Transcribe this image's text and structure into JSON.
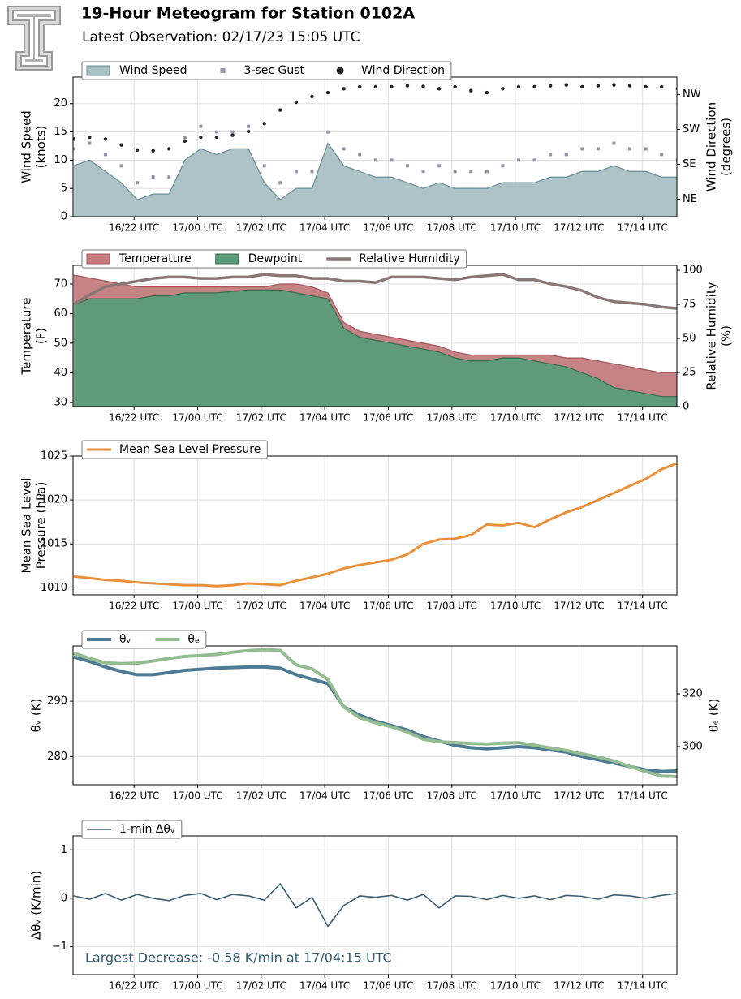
{
  "header": {
    "title": "19-Hour Meteogram for Station 0102A",
    "subtitle": "Latest Observation: 02/17/23 15:05 UTC"
  },
  "chart_data": [
    {
      "type": "combo",
      "ylabel": [
        "Wind Speed",
        "(knots)"
      ],
      "y2label": [
        "Wind Direction",
        "(degrees)"
      ],
      "x": [
        20.1,
        20.6,
        21.1,
        21.6,
        22.1,
        22.6,
        23.1,
        23.6,
        24.1,
        24.6,
        25.1,
        25.6,
        26.1,
        26.6,
        27.1,
        27.6,
        28.1,
        28.6,
        29.1,
        29.6,
        30.1,
        30.6,
        31.1,
        31.6,
        32.1,
        32.6,
        33.1,
        33.6,
        34.1,
        34.6,
        35.1,
        35.6,
        36.1,
        36.6,
        37.1,
        37.6,
        38.1,
        38.6,
        39.1
      ],
      "xlim": [
        20.08,
        39.08
      ],
      "xticks": [
        {
          "value": 22,
          "label": "16/22 UTC"
        },
        {
          "value": 24,
          "label": "17/00 UTC"
        },
        {
          "value": 26,
          "label": "17/02 UTC"
        },
        {
          "value": 28,
          "label": "17/04 UTC"
        },
        {
          "value": 30,
          "label": "17/06 UTC"
        },
        {
          "value": 32,
          "label": "17/08 UTC"
        },
        {
          "value": 34,
          "label": "17/10 UTC"
        },
        {
          "value": 36,
          "label": "17/12 UTC"
        },
        {
          "value": 38,
          "label": "17/14 UTC"
        }
      ],
      "ylim": [
        0,
        24.7
      ],
      "yticks": [
        0,
        5,
        10,
        15,
        20
      ],
      "y2lim": [
        0,
        360
      ],
      "y2ticks": [
        {
          "value": 45,
          "label": "NE"
        },
        {
          "value": 135,
          "label": "SE"
        },
        {
          "value": 225,
          "label": "SW"
        },
        {
          "value": 315,
          "label": "NW"
        }
      ],
      "grid": true,
      "series": [
        {
          "name": "Wind Speed",
          "type": "area",
          "color": "#a9c0c5",
          "line_color": "#6e9099",
          "values": [
            9,
            10,
            8,
            6,
            3,
            4,
            4,
            10,
            12,
            11,
            12,
            12,
            6,
            3,
            5,
            5,
            13,
            9,
            8,
            7,
            7,
            6,
            5,
            6,
            5,
            5,
            5,
            6,
            6,
            6,
            7,
            7,
            8,
            8,
            9,
            8,
            8,
            7,
            7
          ]
        },
        {
          "name": "3-sec Gust",
          "type": "scatter",
          "marker": "square",
          "color": "#9a8fa8",
          "values": [
            12,
            13,
            11,
            9,
            6,
            7,
            7,
            14,
            16,
            15,
            15,
            16,
            9,
            6,
            8,
            8,
            15,
            12,
            11,
            10,
            10,
            9,
            8,
            9,
            8,
            8,
            8,
            9,
            10,
            10,
            11,
            11,
            12,
            12,
            13,
            12,
            12,
            11,
            10
          ]
        },
        {
          "name": "Wind Direction",
          "type": "scatter",
          "marker": "circle",
          "color": "#222222",
          "axis": "y2",
          "values": [
            200,
            205,
            200,
            185,
            172,
            170,
            175,
            195,
            205,
            205,
            210,
            220,
            240,
            275,
            295,
            310,
            320,
            330,
            335,
            335,
            335,
            338,
            336,
            330,
            335,
            325,
            320,
            330,
            335,
            335,
            338,
            340,
            335,
            338,
            340,
            338,
            335,
            335,
            330
          ]
        }
      ]
    },
    {
      "type": "combo",
      "ylabel": [
        "Temperature",
        "(F)"
      ],
      "y2label": [
        "Relative Humidity",
        "(%)"
      ],
      "x": [
        20.1,
        20.6,
        21.1,
        21.6,
        22.1,
        22.6,
        23.1,
        23.6,
        24.1,
        24.6,
        25.1,
        25.6,
        26.1,
        26.6,
        27.1,
        27.6,
        28.1,
        28.6,
        29.1,
        29.6,
        30.1,
        30.6,
        31.1,
        31.6,
        32.1,
        32.6,
        33.1,
        33.6,
        34.1,
        34.6,
        35.1,
        35.6,
        36.1,
        36.6,
        37.1,
        37.6,
        38.1,
        38.6,
        39.1
      ],
      "xlim": [
        20.08,
        39.08
      ],
      "xticks": [
        {
          "value": 22,
          "label": "16/22 UTC"
        },
        {
          "value": 24,
          "label": "17/00 UTC"
        },
        {
          "value": 26,
          "label": "17/02 UTC"
        },
        {
          "value": 28,
          "label": "17/04 UTC"
        },
        {
          "value": 30,
          "label": "17/06 UTC"
        },
        {
          "value": 32,
          "label": "17/08 UTC"
        },
        {
          "value": 34,
          "label": "17/10 UTC"
        },
        {
          "value": 36,
          "label": "17/12 UTC"
        },
        {
          "value": 38,
          "label": "17/14 UTC"
        }
      ],
      "ylim": [
        28.6,
        76.3
      ],
      "yticks": [
        30,
        40,
        50,
        60,
        70
      ],
      "y2lim": [
        0,
        103.6
      ],
      "y2ticks": [
        0,
        25,
        50,
        75,
        100
      ],
      "grid": true,
      "series": [
        {
          "name": "Temperature",
          "type": "area",
          "color": "#c47b7e",
          "line_color": "#a35a5d",
          "values": [
            73,
            72,
            71,
            70,
            69,
            69,
            69,
            69,
            69,
            69,
            69,
            69,
            69,
            70,
            70,
            69,
            67,
            57,
            54,
            53,
            52,
            51,
            50,
            49,
            47,
            46,
            46,
            46,
            46,
            46,
            46,
            45,
            45,
            44,
            43,
            42,
            41,
            40,
            40
          ]
        },
        {
          "name": "Dewpoint",
          "type": "area",
          "color": "#5a9c78",
          "line_color": "#3f6e52",
          "values": [
            63,
            65,
            65,
            65,
            65,
            66,
            66,
            67,
            67,
            67,
            67.5,
            68,
            68,
            68,
            67,
            66,
            65,
            55,
            52,
            51,
            50,
            49,
            48,
            47,
            45,
            44,
            44,
            45,
            45,
            44,
            43,
            42,
            40,
            38,
            35,
            34,
            33,
            32,
            32
          ]
        },
        {
          "name": "Relative Humidity",
          "type": "line",
          "width": 3.5,
          "color": "#8a7676",
          "axis": "y2",
          "values": [
            75,
            82,
            88,
            90,
            92,
            94,
            95,
            95,
            94,
            94,
            95,
            95,
            97,
            96,
            96,
            94,
            94,
            92,
            92,
            91,
            95,
            95,
            95,
            94,
            93,
            95,
            96,
            97,
            93,
            93,
            90,
            88,
            85,
            80,
            77,
            76,
            75,
            73,
            72
          ]
        }
      ]
    },
    {
      "type": "combo",
      "ylabel": [
        "Mean Sea Level",
        "Pressure (hPa)"
      ],
      "x": [
        20.1,
        20.6,
        21.1,
        21.6,
        22.1,
        22.6,
        23.1,
        23.6,
        24.1,
        24.6,
        25.1,
        25.6,
        26.1,
        26.6,
        27.1,
        27.6,
        28.1,
        28.6,
        29.1,
        29.6,
        30.1,
        30.6,
        31.1,
        31.6,
        32.1,
        32.6,
        33.1,
        33.6,
        34.1,
        34.6,
        35.1,
        35.6,
        36.1,
        36.6,
        37.1,
        37.6,
        38.1,
        38.6,
        39.1
      ],
      "xlim": [
        20.08,
        39.08
      ],
      "xticks": [
        {
          "value": 22,
          "label": "16/22 UTC"
        },
        {
          "value": 24,
          "label": "17/00 UTC"
        },
        {
          "value": 26,
          "label": "17/02 UTC"
        },
        {
          "value": 28,
          "label": "17/04 UTC"
        },
        {
          "value": 30,
          "label": "17/06 UTC"
        },
        {
          "value": 32,
          "label": "17/08 UTC"
        },
        {
          "value": 34,
          "label": "17/10 UTC"
        },
        {
          "value": 36,
          "label": "17/12 UTC"
        },
        {
          "value": 38,
          "label": "17/14 UTC"
        }
      ],
      "ylim": [
        1009.2,
        1025
      ],
      "yticks": [
        1010,
        1015,
        1020,
        1025
      ],
      "grid": true,
      "series": [
        {
          "name": "Mean Sea Level Pressure",
          "type": "line",
          "width": 3,
          "color": "#e8903a",
          "values": [
            1011.3,
            1011.1,
            1010.9,
            1010.8,
            1010.6,
            1010.5,
            1010.4,
            1010.3,
            1010.3,
            1010.2,
            1010.3,
            1010.5,
            1010.4,
            1010.3,
            1010.8,
            1011.2,
            1011.6,
            1012.2,
            1012.6,
            1012.9,
            1013.2,
            1013.8,
            1015,
            1015.5,
            1015.6,
            1016,
            1017.2,
            1017.1,
            1017.4,
            1016.9,
            1017.8,
            1018.6,
            1019.2,
            1020,
            1020.8,
            1021.6,
            1022.4,
            1023.5,
            1024.2
          ]
        }
      ]
    },
    {
      "type": "combo",
      "ylabel": [
        "θᵥ (K)"
      ],
      "y2label": [
        "θₑ (K)"
      ],
      "x": [
        20.1,
        20.6,
        21.1,
        21.6,
        22.1,
        22.6,
        23.1,
        23.6,
        24.1,
        24.6,
        25.1,
        25.6,
        26.1,
        26.6,
        27.1,
        27.6,
        28.1,
        28.6,
        29.1,
        29.6,
        30.1,
        30.6,
        31.1,
        31.6,
        32.1,
        32.6,
        33.1,
        33.6,
        34.1,
        34.6,
        35.1,
        35.6,
        36.1,
        36.6,
        37.1,
        37.6,
        38.1,
        38.6,
        39.1
      ],
      "xlim": [
        20.08,
        39.08
      ],
      "xticks": [
        {
          "value": 22,
          "label": "16/22 UTC"
        },
        {
          "value": 24,
          "label": "17/00 UTC"
        },
        {
          "value": 26,
          "label": "17/02 UTC"
        },
        {
          "value": 28,
          "label": "17/04 UTC"
        },
        {
          "value": 30,
          "label": "17/06 UTC"
        },
        {
          "value": 32,
          "label": "17/08 UTC"
        },
        {
          "value": 34,
          "label": "17/10 UTC"
        },
        {
          "value": 36,
          "label": "17/12 UTC"
        },
        {
          "value": 38,
          "label": "17/14 UTC"
        }
      ],
      "ylim": [
        274.9,
        300
      ],
      "yticks": [
        280,
        290
      ],
      "y2lim": [
        285.5,
        338.2
      ],
      "y2ticks": [
        300,
        320
      ],
      "grid": true,
      "series": [
        {
          "name": "θᵥ",
          "type": "line",
          "width": 4,
          "color": "#4d7a95",
          "values": [
            298,
            297.2,
            296.2,
            295.4,
            294.8,
            294.8,
            295.2,
            295.6,
            295.8,
            296,
            296.1,
            296.2,
            296.2,
            296,
            294.8,
            294,
            293.2,
            289,
            287.5,
            286.4,
            285.6,
            284.8,
            283.6,
            282.8,
            282,
            281.6,
            281.4,
            281.6,
            281.8,
            281.6,
            281.2,
            280.8,
            280,
            279.4,
            278.8,
            278.2,
            277.6,
            277.3,
            277.4
          ]
        },
        {
          "name": "θₑ",
          "type": "line",
          "width": 4,
          "color": "#93bd90",
          "axis": "y2",
          "values": [
            335.5,
            333.5,
            331.8,
            331.5,
            331.7,
            332.5,
            333.5,
            334.2,
            334.6,
            335,
            335.8,
            336.4,
            336.8,
            336.5,
            331,
            329.5,
            325.5,
            315,
            311,
            309,
            307.5,
            305.5,
            302.8,
            301.8,
            301.5,
            301.2,
            301,
            301.3,
            301.5,
            300.5,
            299.5,
            298.5,
            297.2,
            296,
            294.5,
            292.5,
            290.5,
            288.8,
            288.6
          ]
        }
      ]
    },
    {
      "type": "combo",
      "ylabel": [
        "Δθᵥ (K/min)"
      ],
      "annotation": "Largest Decrease: -0.58 K/min at 17/04:15 UTC",
      "x": [
        20.1,
        20.6,
        21.1,
        21.6,
        22.1,
        22.6,
        23.1,
        23.6,
        24.1,
        24.6,
        25.1,
        25.6,
        26.1,
        26.6,
        27.1,
        27.6,
        28.1,
        28.6,
        29.1,
        29.6,
        30.1,
        30.6,
        31.1,
        31.6,
        32.1,
        32.6,
        33.1,
        33.6,
        34.1,
        34.6,
        35.1,
        35.6,
        36.1,
        36.6,
        37.1,
        37.6,
        38.1,
        38.6,
        39.1
      ],
      "xlim": [
        20.08,
        39.08
      ],
      "xticks": [
        {
          "value": 22,
          "label": "16/22 UTC"
        },
        {
          "value": 24,
          "label": "17/00 UTC"
        },
        {
          "value": 26,
          "label": "17/02 UTC"
        },
        {
          "value": 28,
          "label": "17/04 UTC"
        },
        {
          "value": 30,
          "label": "17/06 UTC"
        },
        {
          "value": 32,
          "label": "17/08 UTC"
        },
        {
          "value": 34,
          "label": "17/10 UTC"
        },
        {
          "value": 36,
          "label": "17/12 UTC"
        },
        {
          "value": 38,
          "label": "17/14 UTC"
        }
      ],
      "ylim": [
        -1.58,
        1.29
      ],
      "yticks": [
        {
          "value": -1,
          "label": "−1"
        },
        0,
        1
      ],
      "grid": true,
      "series": [
        {
          "name": "1-min Δθᵥ",
          "type": "line",
          "width": 1.6,
          "color": "#3b5e73",
          "values": [
            0.05,
            -0.02,
            0.1,
            -0.04,
            0.08,
            0,
            -0.05,
            0.06,
            0.1,
            -0.03,
            0.08,
            0.05,
            -0.04,
            0.3,
            -0.2,
            0.02,
            -0.58,
            -0.15,
            0.05,
            0.02,
            0.06,
            -0.04,
            0.08,
            -0.2,
            0.05,
            0.04,
            -0.03,
            0.06,
            0,
            0.05,
            -0.03,
            0.06,
            0.04,
            -0.02,
            0.07,
            0.05,
            0,
            0.06,
            0.1
          ]
        }
      ]
    }
  ]
}
